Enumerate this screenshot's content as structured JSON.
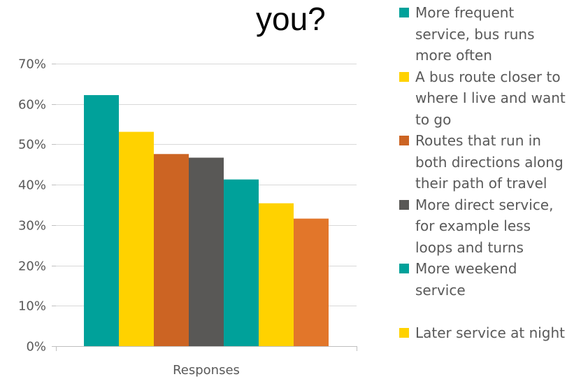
{
  "title_fragment": "you?",
  "chart_data": {
    "type": "bar",
    "categories": [
      "Responses"
    ],
    "ylim": [
      0,
      70
    ],
    "yticks": [
      "0%",
      "10%",
      "20%",
      "30%",
      "40%",
      "50%",
      "60%",
      "70%"
    ],
    "ytick_values": [
      0,
      10,
      20,
      30,
      40,
      50,
      60,
      70
    ],
    "grid": true,
    "legend_position": "right",
    "series": [
      {
        "name": "More frequent service, bus runs more often",
        "values": [
          62.2
        ],
        "color": "#00A19A"
      },
      {
        "name": "A bus route closer to where I live and want to go",
        "values": [
          53.1
        ],
        "color": "#FFD200"
      },
      {
        "name": "Routes that run in both directions along their path of travel",
        "values": [
          47.6
        ],
        "color": "#CC6423"
      },
      {
        "name": "More direct service, for example less loops and turns",
        "values": [
          46.7
        ],
        "color": "#595856"
      },
      {
        "name": "More weekend service",
        "values": [
          41.3
        ],
        "color": "#00A19A"
      },
      {
        "name": "Later service at night",
        "values": [
          35.4
        ],
        "color": "#FFD200"
      },
      {
        "name": "",
        "values": [
          31.6
        ],
        "color": "#E2762A"
      }
    ]
  },
  "legend": [
    {
      "lines": [
        "More frequent",
        "service, bus runs",
        "more often"
      ],
      "color": "#00A19A"
    },
    {
      "lines": [
        "A bus route closer to",
        "where I live and want",
        "to go"
      ],
      "color": "#FFD200"
    },
    {
      "lines": [
        "Routes that run in",
        "both directions along",
        "their path of travel"
      ],
      "color": "#CC6423"
    },
    {
      "lines": [
        "More direct service,",
        "for example less",
        "loops and turns"
      ],
      "color": "#595856"
    },
    {
      "lines": [
        "More weekend",
        "service"
      ],
      "color": "#00A19A"
    },
    {
      "lines": [
        "Later service at night"
      ],
      "color": "#FFD200"
    }
  ]
}
